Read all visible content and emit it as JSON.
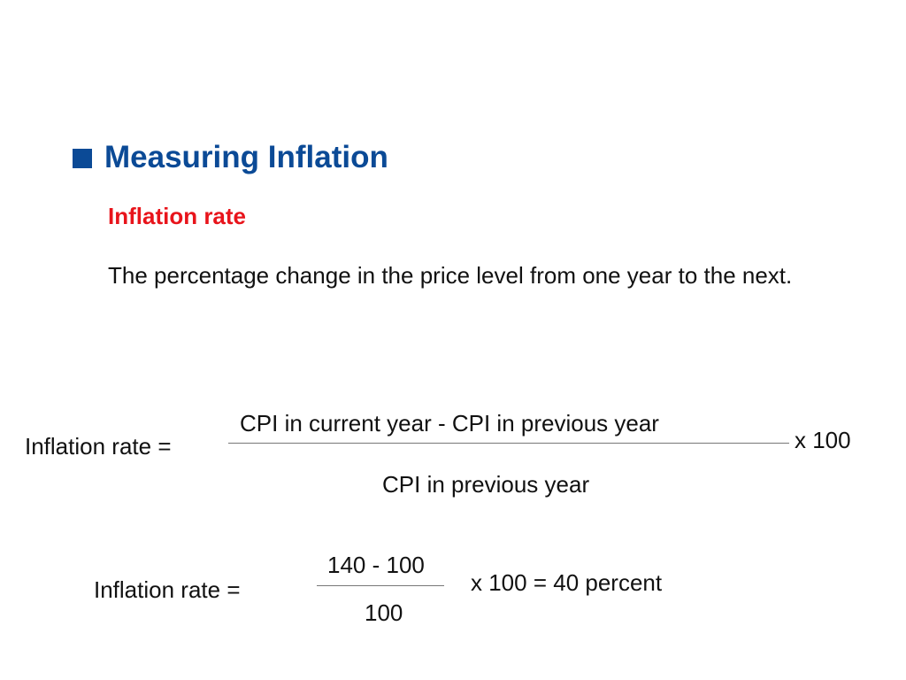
{
  "slide": {
    "heading": "Measuring Inflation",
    "term": "Inflation rate",
    "definition": "The percentage change in the price level from one year to the next.",
    "colors": {
      "heading": "#0b4a96",
      "term": "#e8141b",
      "bullet": "#0b4a96"
    }
  },
  "formula": {
    "label": "Inflation rate =",
    "numerator": "CPI in current year - CPI in previous year",
    "denominator": "CPI in previous year",
    "multiplier": "x 100"
  },
  "example": {
    "label": "Inflation rate =",
    "numerator": "140 - 100",
    "denominator": "100",
    "result": "x 100 = 40 percent"
  }
}
